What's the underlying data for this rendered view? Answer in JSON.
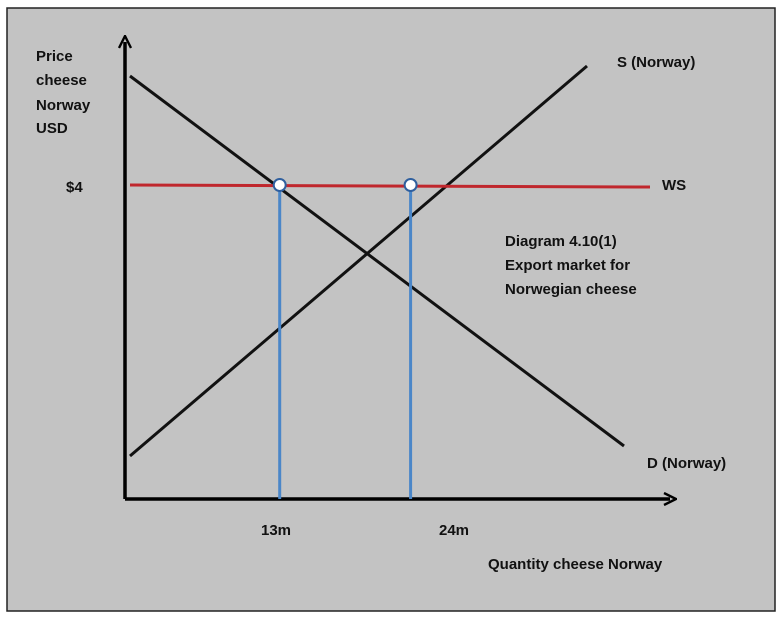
{
  "chart_data": {
    "type": "line",
    "title_lines": [
      "Diagram 4.10(1)",
      "Export market for",
      "Norwegian cheese"
    ],
    "ylabel_lines": [
      "Price",
      "cheese",
      "Norway",
      "USD"
    ],
    "xlabel": "Quantity cheese Norway",
    "world_price": {
      "label": "WS",
      "value_label": "$4",
      "y": 4
    },
    "supply": {
      "name": "S (Norway)"
    },
    "demand": {
      "name": "D (Norway)"
    },
    "quantities": [
      {
        "label": "13m",
        "x": 13
      },
      {
        "label": "24m",
        "x": 24
      }
    ],
    "xlim": [
      0,
      37.8
    ],
    "ylim": [
      0,
      7.3
    ],
    "colors": {
      "background": "#c3c3c3",
      "world_price_line": "#c0272d",
      "quantity_drop_lines": "#4a86c8",
      "curves": "#111111"
    }
  }
}
